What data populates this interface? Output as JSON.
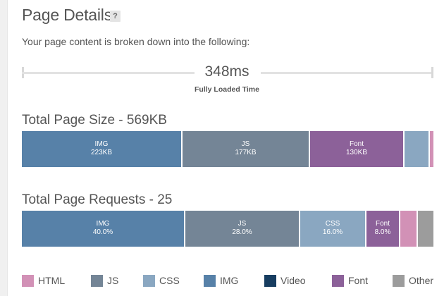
{
  "header": {
    "title": "Page Details",
    "help_label": "?",
    "subtitle": "Your page content is broken down into the following:"
  },
  "timeline": {
    "value": "348ms",
    "label": "Fully Loaded Time"
  },
  "colors": {
    "html": "#d291b6",
    "js": "#748596",
    "css": "#8aa7c1",
    "img": "#5781a8",
    "video": "#173d60",
    "font": "#8c6199",
    "other": "#9c9c9c"
  },
  "size_breakdown": {
    "title": "Total Page Size - 569KB",
    "segments": [
      {
        "type": "img",
        "label": "IMG",
        "value_text": "223KB",
        "kb": 223
      },
      {
        "type": "js",
        "label": "JS",
        "value_text": "177KB",
        "kb": 177
      },
      {
        "type": "font",
        "label": "Font",
        "value_text": "130KB",
        "kb": 130
      },
      {
        "type": "css",
        "label": "",
        "value_text": "",
        "kb": 34
      },
      {
        "type": "html",
        "label": "",
        "value_text": "",
        "kb": 5
      }
    ]
  },
  "requests_breakdown": {
    "title": "Total Page Requests - 25",
    "segments": [
      {
        "type": "img",
        "label": "IMG",
        "value_text": "40.0%",
        "percent": 40
      },
      {
        "type": "js",
        "label": "JS",
        "value_text": "28.0%",
        "percent": 28
      },
      {
        "type": "css",
        "label": "CSS",
        "value_text": "16.0%",
        "percent": 16
      },
      {
        "type": "font",
        "label": "Font",
        "value_text": "8.0%",
        "percent": 8
      },
      {
        "type": "html",
        "label": "",
        "value_text": "",
        "percent": 4
      },
      {
        "type": "other",
        "label": "",
        "value_text": "",
        "percent": 4
      }
    ]
  },
  "legend": [
    {
      "type": "html",
      "label": "HTML"
    },
    {
      "type": "js",
      "label": "JS"
    },
    {
      "type": "css",
      "label": "CSS"
    },
    {
      "type": "img",
      "label": "IMG"
    },
    {
      "type": "video",
      "label": "Video"
    },
    {
      "type": "font",
      "label": "Font"
    },
    {
      "type": "other",
      "label": "Other"
    }
  ]
}
